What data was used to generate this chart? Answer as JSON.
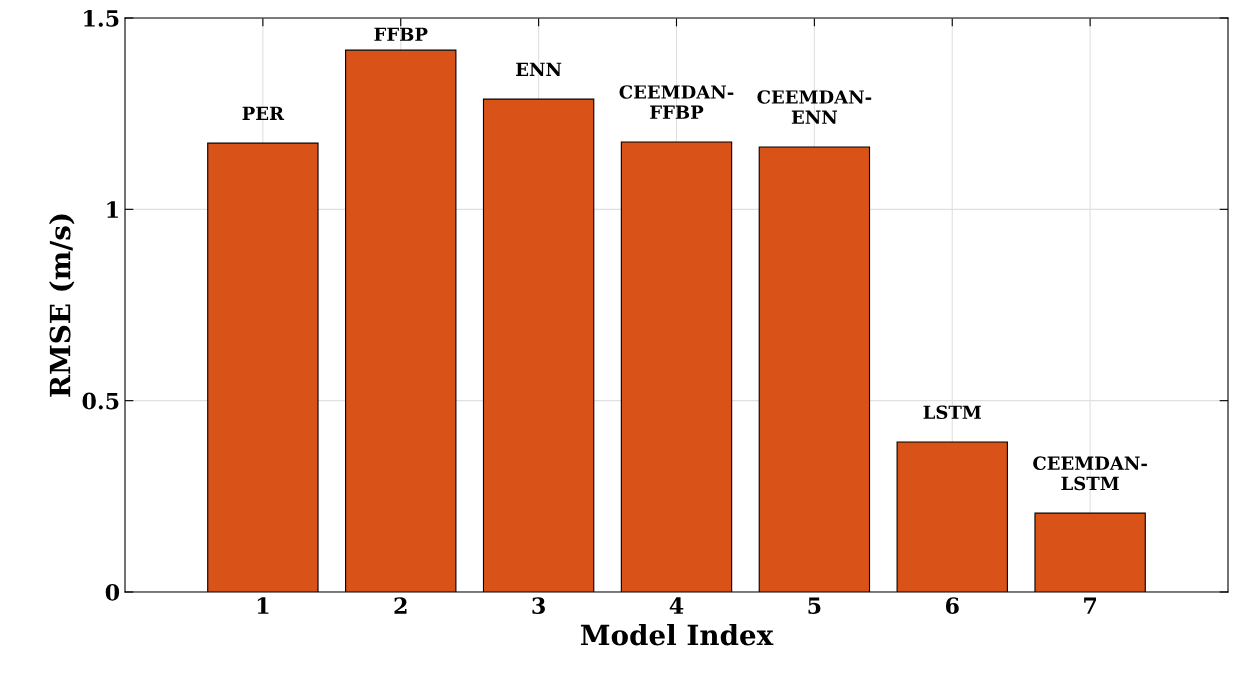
{
  "chart_data": {
    "type": "bar",
    "xlabel": "Model Index",
    "ylabel": "RMSE (m/s)",
    "x": [
      1,
      2,
      3,
      4,
      5,
      6,
      7
    ],
    "values": [
      1.173,
      1.416,
      1.288,
      1.176,
      1.163,
      0.392,
      0.206
    ],
    "color": "#d95319",
    "xlim": [
      0,
      8
    ],
    "xticks": [
      1,
      2,
      3,
      4,
      5,
      6,
      7
    ],
    "ylim": [
      0,
      1.5
    ],
    "yticks": [
      0,
      0.5,
      1,
      1.5
    ],
    "grid": true,
    "annotations": [
      {
        "text": "PER",
        "x": 1,
        "y": 1.173
      },
      {
        "text": "FFBP",
        "x": 2,
        "y": 1.416
      },
      {
        "text": "ENN",
        "x": 3,
        "y": 1.288
      },
      {
        "text": "CEEMDAN-\nFFBP",
        "x": 4,
        "y": 1.176
      },
      {
        "text": "CEEMDAN-\nENN",
        "x": 5,
        "y": 1.163
      },
      {
        "text": "LSTM",
        "x": 6,
        "y": 0.392
      },
      {
        "text": "CEEMDAN-\nLSTM",
        "x": 7,
        "y": 0.206
      }
    ]
  }
}
